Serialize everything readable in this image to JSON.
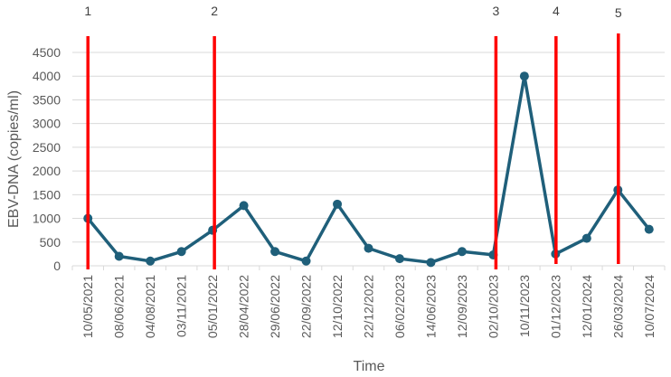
{
  "chart_data": {
    "type": "line",
    "title": "",
    "xlabel": "Time",
    "ylabel": "EBV-DNA (copies/ml)",
    "ylim": [
      0,
      4500
    ],
    "yticks": [
      0,
      500,
      1000,
      1500,
      2000,
      2500,
      3000,
      3500,
      4000,
      4500
    ],
    "grid": true,
    "legend": null,
    "categories": [
      "10/05/2021",
      "08/06/2021",
      "04/08/2021",
      "03/11/2021",
      "05/01/2022",
      "28/04/2022",
      "29/06/2022",
      "22/09/2022",
      "12/10/2022",
      "22/12/2022",
      "06/02/2023",
      "14/06/2023",
      "12/09/2023",
      "02/10/2023",
      "10/11/2023",
      "01/12/2023",
      "12/01/2024",
      "26/03/2024",
      "10/07/2024"
    ],
    "series": [
      {
        "name": "EBV-DNA",
        "color": "#1f5f7a",
        "values": [
          1000,
          200,
          100,
          300,
          750,
          1270,
          300,
          100,
          1300,
          370,
          150,
          70,
          300,
          230,
          4000,
          250,
          580,
          1600,
          770
        ]
      }
    ],
    "annotations": {
      "color": "#ff0000",
      "markers": [
        {
          "label": "1",
          "category_index": 0,
          "x_offset": 0
        },
        {
          "label": "2",
          "category_index": 4,
          "x_offset": 2
        },
        {
          "label": "3",
          "category_index": 13,
          "x_offset": 3
        },
        {
          "label": "4",
          "category_index": 15,
          "x_offset": 0.5
        },
        {
          "label": "5",
          "category_index": 17,
          "x_offset": 0.5
        }
      ]
    }
  }
}
